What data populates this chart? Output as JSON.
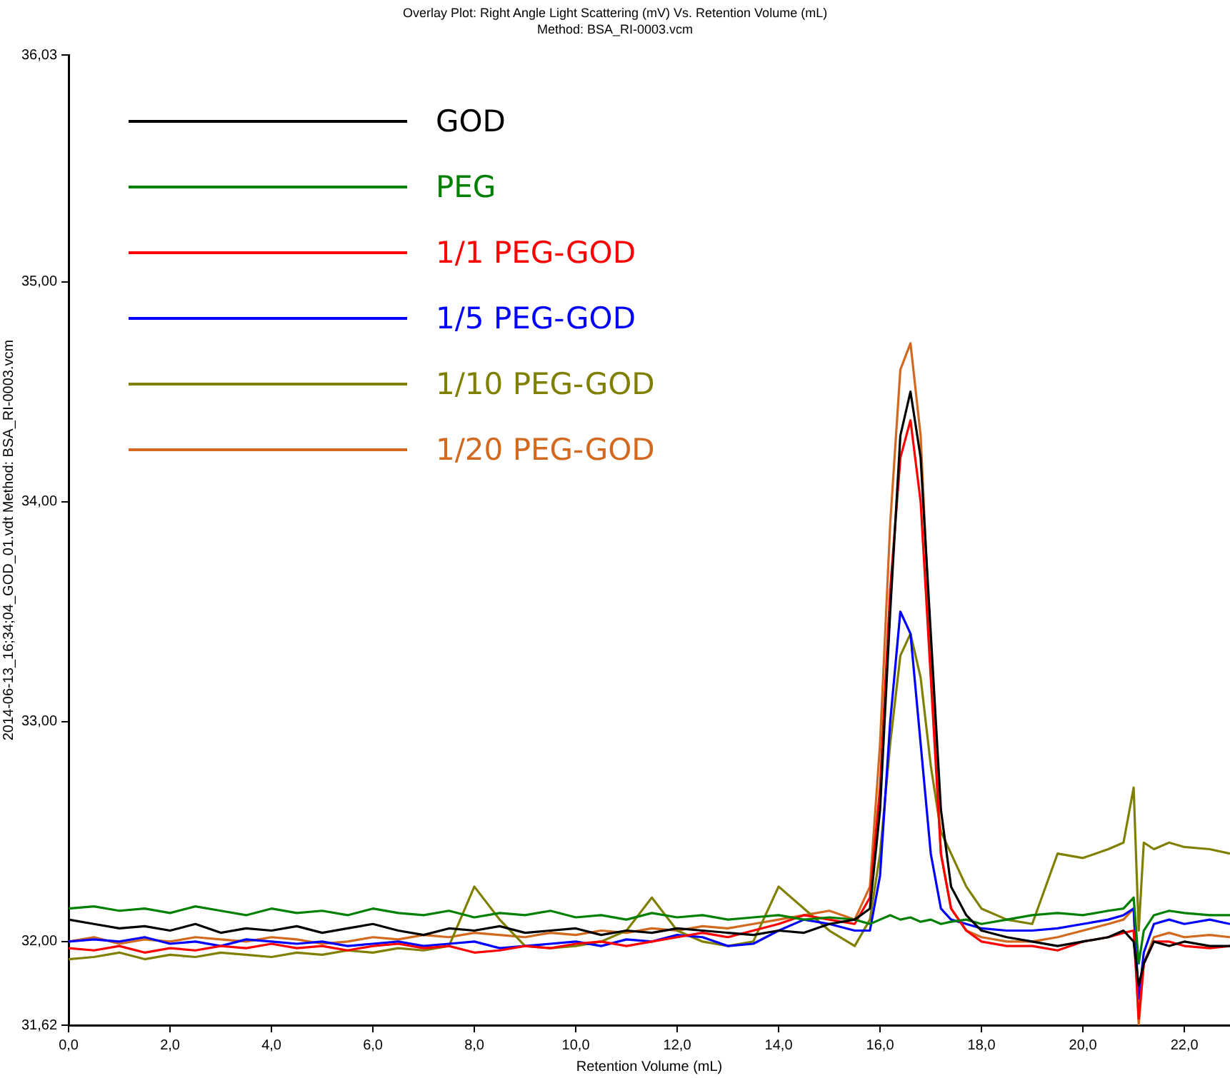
{
  "chart_data": {
    "type": "line",
    "title": "Overlay Plot: Right Angle Light Scattering (mV) Vs. Retention Volume (mL)",
    "subtitle": "Method: BSA_RI-0003.vcm",
    "xlabel": "Retention Volume (mL)",
    "ylabel": "2014-06-13_16;34;04_GOD_01.vdt Method: BSA_RI-0003.vcm",
    "x": [
      0,
      0.5,
      1,
      1.5,
      2,
      2.5,
      3,
      3.5,
      4,
      4.5,
      5,
      5.5,
      6,
      6.5,
      7,
      7.5,
      8,
      8.5,
      9,
      9.5,
      10,
      10.5,
      11,
      11.5,
      12,
      12.5,
      13,
      13.5,
      14,
      14.5,
      15,
      15.5,
      15.8,
      16.0,
      16.2,
      16.4,
      16.6,
      16.8,
      17.0,
      17.2,
      17.4,
      17.7,
      18.0,
      18.5,
      19,
      19.5,
      20,
      20.5,
      20.8,
      21.0,
      21.1,
      21.2,
      21.4,
      21.7,
      22,
      22.5,
      22.9
    ],
    "series": [
      {
        "name": "GOD",
        "color": "#000000",
        "values": [
          32.1,
          32.08,
          32.06,
          32.07,
          32.05,
          32.08,
          32.04,
          32.06,
          32.05,
          32.07,
          32.04,
          32.06,
          32.08,
          32.05,
          32.03,
          32.06,
          32.05,
          32.07,
          32.04,
          32.05,
          32.06,
          32.03,
          32.05,
          32.04,
          32.06,
          32.05,
          32.04,
          32.03,
          32.05,
          32.04,
          32.08,
          32.1,
          32.15,
          32.6,
          33.5,
          34.3,
          34.5,
          34.2,
          33.4,
          32.6,
          32.25,
          32.12,
          32.05,
          32.02,
          32.0,
          31.98,
          32.0,
          32.02,
          32.05,
          32.0,
          31.8,
          31.9,
          32.0,
          31.98,
          32.0,
          31.98,
          31.98
        ]
      },
      {
        "name": "PEG",
        "color": "#008000",
        "values": [
          32.15,
          32.16,
          32.14,
          32.15,
          32.13,
          32.16,
          32.14,
          32.12,
          32.15,
          32.13,
          32.14,
          32.12,
          32.15,
          32.13,
          32.12,
          32.14,
          32.11,
          32.13,
          32.12,
          32.14,
          32.11,
          32.12,
          32.1,
          32.13,
          32.11,
          32.12,
          32.1,
          32.11,
          32.12,
          32.1,
          32.11,
          32.1,
          32.08,
          32.1,
          32.12,
          32.1,
          32.11,
          32.09,
          32.1,
          32.08,
          32.09,
          32.1,
          32.08,
          32.1,
          32.12,
          32.13,
          32.12,
          32.14,
          32.15,
          32.2,
          31.9,
          32.05,
          32.12,
          32.14,
          32.13,
          32.12,
          32.12
        ]
      },
      {
        "name": "1/1 PEG-GOD",
        "color": "#ff0000",
        "values": [
          31.97,
          31.96,
          31.98,
          31.95,
          31.97,
          31.96,
          31.98,
          31.97,
          31.99,
          31.97,
          31.98,
          31.96,
          31.98,
          31.99,
          31.97,
          31.98,
          31.95,
          31.96,
          31.98,
          31.97,
          31.99,
          32.0,
          31.98,
          32.0,
          32.02,
          32.04,
          32.02,
          32.05,
          32.08,
          32.12,
          32.1,
          32.08,
          32.2,
          32.7,
          33.6,
          34.2,
          34.37,
          34.0,
          33.2,
          32.4,
          32.15,
          32.05,
          32.0,
          31.98,
          31.98,
          31.96,
          32.0,
          32.02,
          32.04,
          32.05,
          31.65,
          31.9,
          32.0,
          32.0,
          31.98,
          31.97,
          31.98
        ]
      },
      {
        "name": "1/5 PEG-GOD",
        "color": "#0000ff",
        "values": [
          32.0,
          32.01,
          32.0,
          32.02,
          31.99,
          32.0,
          31.98,
          32.01,
          32.0,
          31.99,
          32.0,
          31.98,
          31.99,
          32.0,
          31.98,
          31.99,
          32.0,
          31.97,
          31.98,
          31.99,
          32.0,
          31.98,
          32.01,
          32.0,
          32.03,
          32.02,
          31.98,
          31.99,
          32.05,
          32.1,
          32.08,
          32.05,
          32.05,
          32.3,
          33.0,
          33.5,
          33.4,
          32.9,
          32.4,
          32.15,
          32.1,
          32.08,
          32.06,
          32.05,
          32.05,
          32.06,
          32.08,
          32.1,
          32.12,
          32.15,
          31.74,
          31.95,
          32.08,
          32.1,
          32.08,
          32.1,
          32.08
        ]
      },
      {
        "name": "1/10 PEG-GOD",
        "color": "#808000",
        "values": [
          31.92,
          31.93,
          31.95,
          31.92,
          31.94,
          31.93,
          31.95,
          31.94,
          31.93,
          31.95,
          31.94,
          31.96,
          31.95,
          31.97,
          31.96,
          31.98,
          32.25,
          32.1,
          31.98,
          31.97,
          31.98,
          32.0,
          32.05,
          32.2,
          32.05,
          32.0,
          31.98,
          32.0,
          32.25,
          32.15,
          32.05,
          31.98,
          32.1,
          32.4,
          32.9,
          33.3,
          33.4,
          33.2,
          32.8,
          32.5,
          32.4,
          32.25,
          32.15,
          32.1,
          32.08,
          32.4,
          32.38,
          32.42,
          32.45,
          32.7,
          32.05,
          32.45,
          32.42,
          32.45,
          32.43,
          32.42,
          32.4
        ]
      },
      {
        "name": "1/20 PEG-GOD",
        "color": "#d2691e",
        "values": [
          32.0,
          32.02,
          31.99,
          32.01,
          32.0,
          32.02,
          32.01,
          32.0,
          32.02,
          32.01,
          31.99,
          32.0,
          32.02,
          32.01,
          32.03,
          32.02,
          32.04,
          32.03,
          32.02,
          32.04,
          32.03,
          32.05,
          32.04,
          32.06,
          32.05,
          32.07,
          32.06,
          32.08,
          32.1,
          32.12,
          32.14,
          32.1,
          32.25,
          32.9,
          33.9,
          34.6,
          34.72,
          34.3,
          33.3,
          32.4,
          32.15,
          32.05,
          32.02,
          32.0,
          32.0,
          32.02,
          32.05,
          32.08,
          32.1,
          32.15,
          31.62,
          31.9,
          32.02,
          32.04,
          32.02,
          32.03,
          32.02
        ]
      }
    ],
    "xlim": [
      0,
      22.9
    ],
    "ylim": [
      31.62,
      36.03
    ],
    "xticks": [
      {
        "value": 0,
        "label": "0,0"
      },
      {
        "value": 2,
        "label": "2,0"
      },
      {
        "value": 4,
        "label": "4,0"
      },
      {
        "value": 6,
        "label": "6,0"
      },
      {
        "value": 8,
        "label": "8,0"
      },
      {
        "value": 10,
        "label": "10,0"
      },
      {
        "value": 12,
        "label": "12,0"
      },
      {
        "value": 14,
        "label": "14,0"
      },
      {
        "value": 16,
        "label": "16,0"
      },
      {
        "value": 18,
        "label": "18,0"
      },
      {
        "value": 20,
        "label": "20,0"
      },
      {
        "value": 22,
        "label": "22,0"
      }
    ],
    "yticks": [
      {
        "value": 31.62,
        "label": "31,62"
      },
      {
        "value": 32,
        "label": "32,00"
      },
      {
        "value": 33,
        "label": "33,00"
      },
      {
        "value": 34,
        "label": "34,00"
      },
      {
        "value": 35,
        "label": "35,00"
      },
      {
        "value": 36.03,
        "label": "36,03"
      }
    ],
    "grid": false,
    "legend": "top left",
    "marker": "none",
    "line_style": "solid"
  }
}
